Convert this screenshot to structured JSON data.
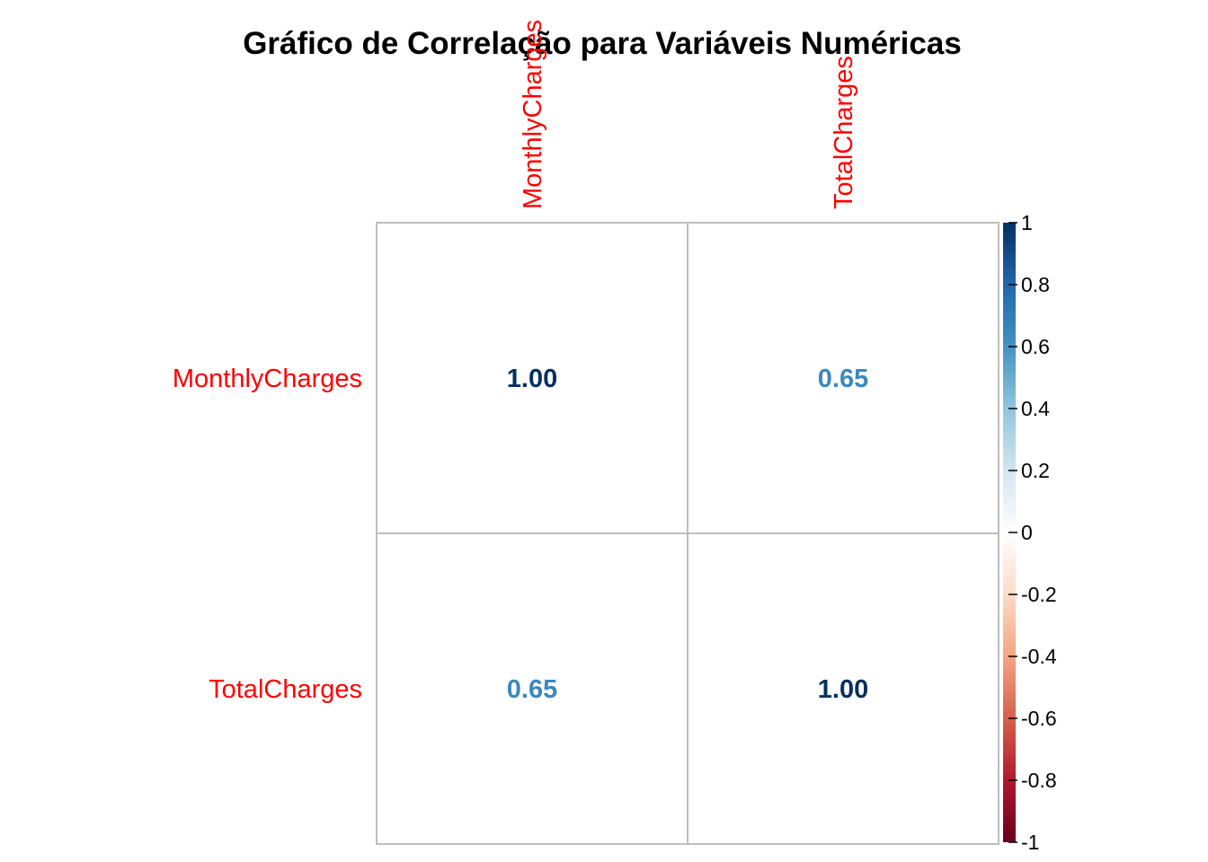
{
  "chart_data": {
    "type": "heatmap",
    "title": "Gráfico de Correlação para Variáveis Numéricas",
    "variables": [
      "MonthlyCharges",
      "TotalCharges"
    ],
    "row_labels": [
      "MonthlyCharges",
      "TotalCharges"
    ],
    "col_labels": [
      "MonthlyCharges",
      "TotalCharges"
    ],
    "matrix": [
      [
        1.0,
        0.65
      ],
      [
        0.65,
        1.0
      ]
    ],
    "value_labels": [
      [
        "1.00",
        "0.65"
      ],
      [
        "0.65",
        "1.00"
      ]
    ],
    "label_color": "#ff0000",
    "grid_color": "#bebebe",
    "colorbar": {
      "range": [
        -1,
        1
      ],
      "ticks": [
        1,
        0.8,
        0.6,
        0.4,
        0.2,
        0,
        -0.2,
        -0.4,
        -0.6,
        -0.8,
        -1
      ],
      "tick_labels": [
        "1",
        "0.8",
        "0.6",
        "0.4",
        "0.2",
        "0",
        "-0.2",
        "-0.4",
        "-0.6",
        "-0.8",
        "-1"
      ],
      "colors": [
        "#67001f",
        "#b2182b",
        "#d6604d",
        "#f4a582",
        "#fddbc7",
        "#ffffff",
        "#d1e5f0",
        "#92c5de",
        "#4393c3",
        "#2166ac",
        "#053061"
      ]
    }
  }
}
